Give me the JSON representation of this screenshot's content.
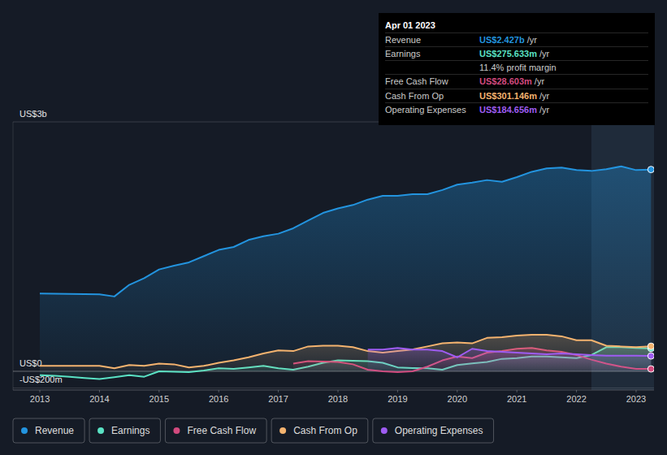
{
  "chart_data": {
    "type": "line",
    "x": [
      2013,
      2013.25,
      2013.5,
      2013.75,
      2014,
      2014.25,
      2014.5,
      2014.75,
      2015,
      2015.25,
      2015.5,
      2015.75,
      2016,
      2016.25,
      2016.5,
      2016.75,
      2017,
      2017.25,
      2017.5,
      2017.75,
      2018,
      2018.25,
      2018.5,
      2018.75,
      2019,
      2019.25,
      2019.5,
      2019.75,
      2020,
      2020.25,
      2020.5,
      2020.75,
      2021,
      2021.25,
      2021.5,
      2021.75,
      2022,
      2022.25,
      2022.5,
      2022.75,
      2023,
      2023.25
    ],
    "series": [
      {
        "name": "Revenue",
        "color": "#2394DF",
        "values": [
          935,
          933,
          931,
          929,
          925,
          900,
          1040,
          1120,
          1225,
          1270,
          1310,
          1385,
          1460,
          1495,
          1580,
          1625,
          1655,
          1720,
          1815,
          1905,
          1960,
          2000,
          2065,
          2110,
          2110,
          2130,
          2130,
          2180,
          2245,
          2270,
          2300,
          2280,
          2335,
          2400,
          2440,
          2450,
          2420,
          2410,
          2430,
          2465,
          2420,
          2427
        ]
      },
      {
        "name": "Earnings",
        "color": "#5AE2C4",
        "values": [
          -47,
          -55,
          -65,
          -80,
          -93,
          -70,
          -47,
          -65,
          0,
          -5,
          -9,
          10,
          37,
          28,
          45,
          65,
          37,
          19,
          56,
          103,
          131,
          128,
          121,
          103,
          47,
          40,
          37,
          19,
          75,
          95,
          112,
          150,
          159,
          178,
          178,
          168,
          159,
          196,
          290,
          290,
          280,
          275.633
        ]
      },
      {
        "name": "Free Cash Flow",
        "color": "#D24A7E",
        "values": [
          null,
          null,
          null,
          null,
          null,
          null,
          null,
          null,
          null,
          null,
          null,
          null,
          null,
          null,
          null,
          null,
          null,
          93,
          121,
          117,
          112,
          84,
          19,
          0,
          -9,
          0,
          56,
          131,
          178,
          159,
          224,
          243,
          271,
          280,
          252,
          234,
          196,
          140,
          93,
          56,
          28,
          28.603
        ]
      },
      {
        "name": "Cash From Op",
        "color": "#F4B36F",
        "values": [
          65,
          65,
          65,
          65,
          65,
          37,
          75,
          65,
          93,
          84,
          47,
          65,
          103,
          131,
          168,
          215,
          252,
          243,
          299,
          308,
          308,
          290,
          243,
          224,
          243,
          262,
          299,
          336,
          346,
          336,
          402,
          411,
          430,
          439,
          439,
          421,
          374,
          374,
          308,
          299,
          290,
          301.146
        ]
      },
      {
        "name": "Operating Expenses",
        "color": "#9E5CF2",
        "values": [
          null,
          null,
          null,
          null,
          null,
          null,
          null,
          null,
          null,
          null,
          null,
          null,
          null,
          null,
          null,
          null,
          null,
          null,
          null,
          null,
          null,
          null,
          262,
          262,
          280,
          262,
          262,
          243,
          168,
          271,
          243,
          234,
          224,
          215,
          206,
          215,
          206,
          196,
          187,
          187,
          187,
          184.656
        ]
      }
    ],
    "xlim": [
      2012.55,
      2023.3
    ],
    "xticks": [
      2013,
      2014,
      2015,
      2016,
      2017,
      2018,
      2019,
      2020,
      2021,
      2022,
      2023
    ],
    "ylim": [
      -225,
      3000
    ],
    "yticks": [
      {
        "value": 3000,
        "label": "US$3b"
      },
      {
        "value": 0,
        "label": "US$0"
      },
      {
        "value": -200,
        "label": "-US$200m"
      }
    ],
    "grid": true,
    "legend": "bottom"
  },
  "tooltip": {
    "date": "Apr 01 2023",
    "rows": [
      {
        "label": "Revenue",
        "value": "US$2.427b",
        "unit": "/yr"
      },
      {
        "label": "Earnings",
        "value": "US$275.633m",
        "unit": "/yr"
      },
      {
        "value": "11.4% profit margin"
      },
      {
        "label": "Free Cash Flow",
        "value": "US$28.603m",
        "unit": "/yr"
      },
      {
        "label": "Cash From Op",
        "value": "US$301.146m",
        "unit": "/yr"
      },
      {
        "label": "Operating Expenses",
        "value": "US$184.656m",
        "unit": "/yr"
      }
    ]
  }
}
